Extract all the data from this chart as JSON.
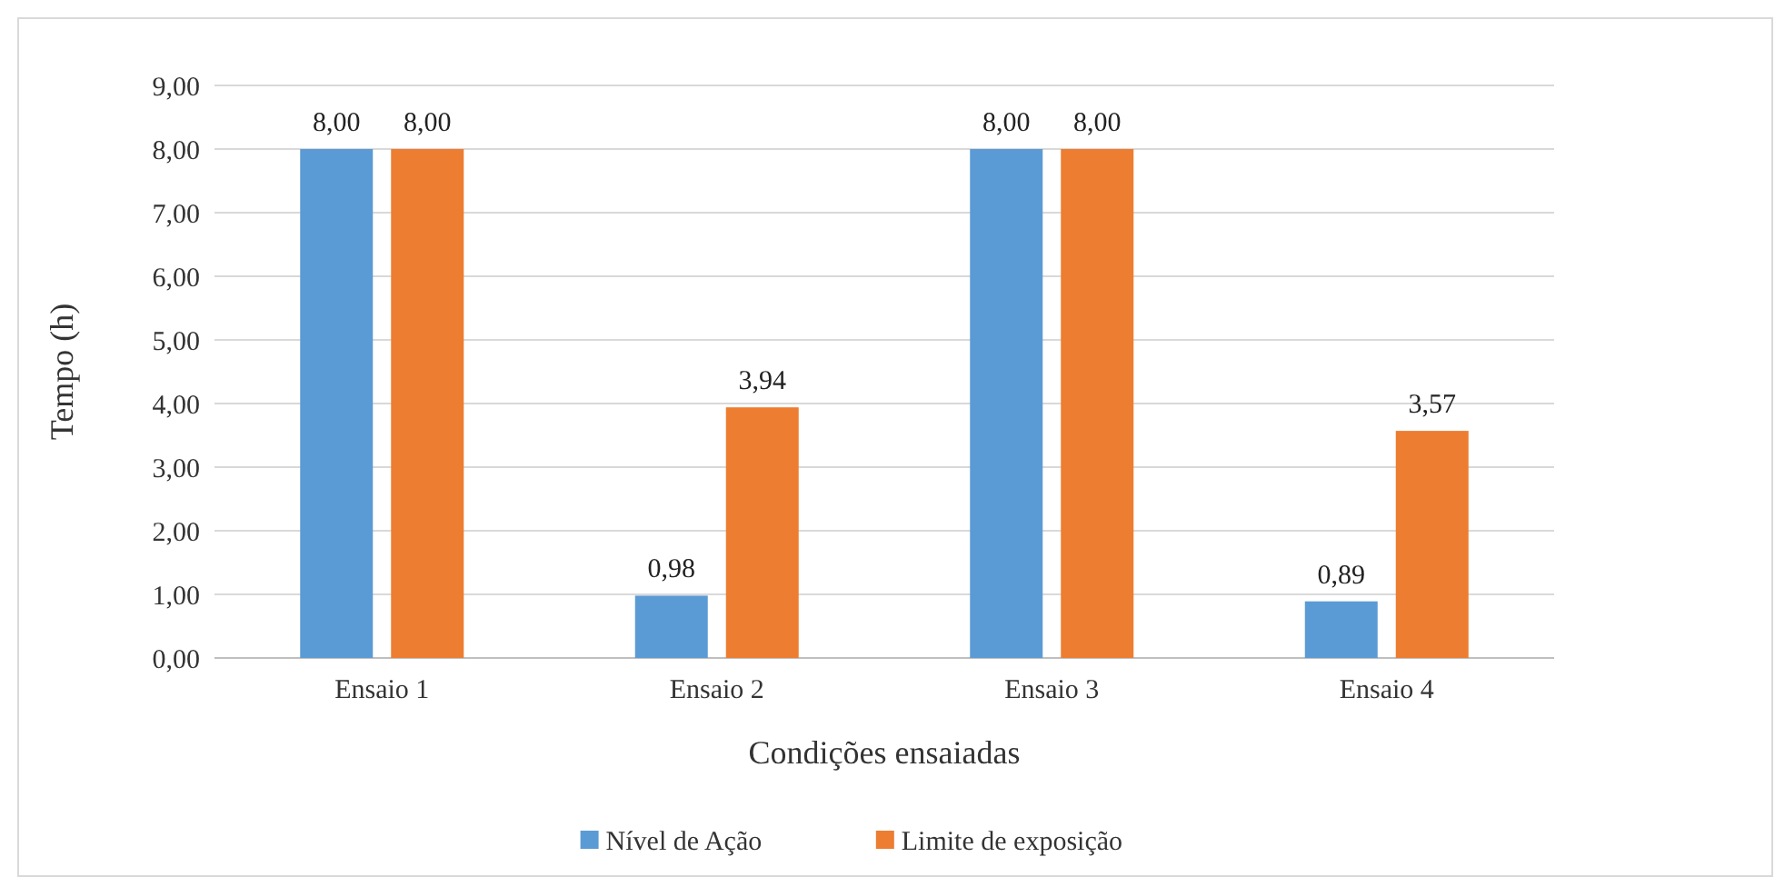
{
  "chart_data": {
    "type": "bar",
    "xlabel": "Condições ensaiadas",
    "ylabel": "Tempo (h)",
    "categories": [
      "Ensaio 1",
      "Ensaio 2",
      "Ensaio 3",
      "Ensaio 4"
    ],
    "series": [
      {
        "name": "Nível de Ação",
        "color": "#5b9bd5",
        "values": [
          8,
          0.98,
          8,
          0.89
        ],
        "value_labels": [
          "8,00",
          "0,98",
          "8,00",
          "0,89"
        ]
      },
      {
        "name": "Limite de exposição",
        "color": "#ed7d31",
        "values": [
          8,
          3.94,
          8,
          3.57
        ],
        "value_labels": [
          "8,00",
          "3,94",
          "8,00",
          "3,57"
        ]
      }
    ],
    "ylim": [
      0,
      9
    ],
    "yticks": [
      {
        "value": 0,
        "label": "0,00"
      },
      {
        "value": 1,
        "label": "1,00"
      },
      {
        "value": 2,
        "label": "2,00"
      },
      {
        "value": 3,
        "label": "3,00"
      },
      {
        "value": 4,
        "label": "4,00"
      },
      {
        "value": 5,
        "label": "5,00"
      },
      {
        "value": 6,
        "label": "6,00"
      },
      {
        "value": 7,
        "label": "7,00"
      },
      {
        "value": 8,
        "label": "8,00"
      },
      {
        "value": 9,
        "label": "9,00"
      }
    ],
    "grid": "y",
    "legend": "bottom"
  }
}
